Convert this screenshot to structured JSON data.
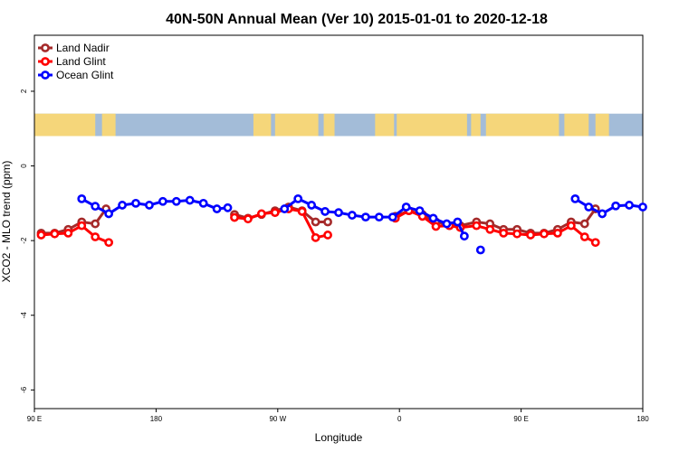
{
  "chart_data": {
    "type": "line",
    "title": "40N-50N Annual Mean (Ver 10)   2015-01-01 to 2020-12-18",
    "xlabel": "Longitude",
    "ylabel": "XCO2 - MLO trend (ppm)",
    "xlim": [
      90,
      540
    ],
    "ylim": [
      -6.5,
      3.5
    ],
    "xticks": [
      {
        "value": 90,
        "label": "90 E"
      },
      {
        "value": 180,
        "label": "180"
      },
      {
        "value": 270,
        "label": "90 W"
      },
      {
        "value": 360,
        "label": "0"
      },
      {
        "value": 450,
        "label": "90 E"
      },
      {
        "value": 540,
        "label": "180"
      }
    ],
    "yticks": [
      {
        "value": 2,
        "label": "2"
      },
      {
        "value": 0,
        "label": "0"
      },
      {
        "value": -2,
        "label": "-2"
      },
      {
        "value": -4,
        "label": "-4"
      },
      {
        "value": -6,
        "label": "-6"
      }
    ],
    "legend_position": "top-left",
    "map_strip": {
      "y_top": 1.4,
      "y_bottom": 0.8,
      "ocean_color": "#a3bcd8",
      "land_color": "#f5d67a"
    },
    "series": [
      {
        "name": "Land Nadir",
        "color": "#a52a2a",
        "segments": [
          [
            [
              95,
              -1.8
            ],
            [
              105,
              -1.8
            ],
            [
              115,
              -1.7
            ],
            [
              125,
              -1.5
            ],
            [
              135,
              -1.55
            ],
            [
              143,
              -1.15
            ]
          ],
          [
            [
              238,
              -1.3
            ],
            [
              248,
              -1.4
            ],
            [
              258,
              -1.3
            ],
            [
              268,
              -1.2
            ],
            [
              278,
              -1.1
            ],
            [
              288,
              -1.2
            ],
            [
              298,
              -1.5
            ],
            [
              307,
              -1.5
            ]
          ],
          [
            [
              357,
              -1.35
            ],
            [
              367,
              -1.2
            ],
            [
              377,
              -1.3
            ],
            [
              387,
              -1.5
            ],
            [
              397,
              -1.6
            ],
            [
              405,
              -1.6
            ],
            [
              417,
              -1.5
            ],
            [
              427,
              -1.55
            ],
            [
              437,
              -1.7
            ],
            [
              447,
              -1.7
            ],
            [
              457,
              -1.8
            ],
            [
              467,
              -1.8
            ],
            [
              477,
              -1.7
            ],
            [
              487,
              -1.5
            ],
            [
              497,
              -1.55
            ],
            [
              505,
              -1.15
            ]
          ]
        ]
      },
      {
        "name": "Land Glint",
        "color": "#ff0000",
        "segments": [
          [
            [
              95,
              -1.85
            ],
            [
              105,
              -1.82
            ],
            [
              115,
              -1.8
            ],
            [
              125,
              -1.6
            ],
            [
              135,
              -1.9
            ],
            [
              145,
              -2.05
            ]
          ],
          [
            [
              238,
              -1.38
            ],
            [
              248,
              -1.42
            ],
            [
              258,
              -1.28
            ],
            [
              268,
              -1.25
            ],
            [
              278,
              -1.15
            ],
            [
              288,
              -1.22
            ],
            [
              298,
              -1.92
            ],
            [
              307,
              -1.85
            ]
          ],
          [
            [
              357,
              -1.4
            ],
            [
              367,
              -1.2
            ],
            [
              377,
              -1.35
            ],
            [
              387,
              -1.62
            ],
            [
              397,
              -1.6
            ],
            [
              405,
              -1.65
            ],
            [
              417,
              -1.6
            ],
            [
              427,
              -1.7
            ],
            [
              437,
              -1.8
            ],
            [
              447,
              -1.82
            ],
            [
              457,
              -1.85
            ],
            [
              467,
              -1.82
            ],
            [
              477,
              -1.8
            ],
            [
              487,
              -1.6
            ],
            [
              497,
              -1.9
            ],
            [
              505,
              -2.05
            ]
          ]
        ]
      },
      {
        "name": "Ocean Glint",
        "color": "#0000ff",
        "segments": [
          [
            [
              125,
              -0.88
            ],
            [
              135,
              -1.08
            ],
            [
              145,
              -1.28
            ],
            [
              155,
              -1.05
            ],
            [
              165,
              -1.0
            ],
            [
              175,
              -1.05
            ],
            [
              185,
              -0.95
            ],
            [
              195,
              -0.95
            ],
            [
              205,
              -0.92
            ],
            [
              215,
              -1.0
            ],
            [
              225,
              -1.15
            ],
            [
              233,
              -1.12
            ]
          ],
          [
            [
              275,
              -1.15
            ],
            [
              285,
              -0.88
            ],
            [
              295,
              -1.05
            ],
            [
              305,
              -1.22
            ],
            [
              315,
              -1.25
            ],
            [
              325,
              -1.32
            ],
            [
              335,
              -1.37
            ],
            [
              345,
              -1.37
            ],
            [
              355,
              -1.37
            ],
            [
              365,
              -1.1
            ],
            [
              375,
              -1.2
            ],
            [
              385,
              -1.4
            ],
            [
              395,
              -1.55
            ],
            [
              403,
              -1.5
            ],
            [
              408,
              -1.88
            ]
          ],
          [
            [
              420,
              -2.25
            ]
          ],
          [
            [
              490,
              -0.88
            ],
            [
              500,
              -1.1
            ],
            [
              510,
              -1.28
            ],
            [
              520,
              -1.07
            ],
            [
              530,
              -1.05
            ],
            [
              540,
              -1.1
            ]
          ]
        ]
      }
    ]
  }
}
